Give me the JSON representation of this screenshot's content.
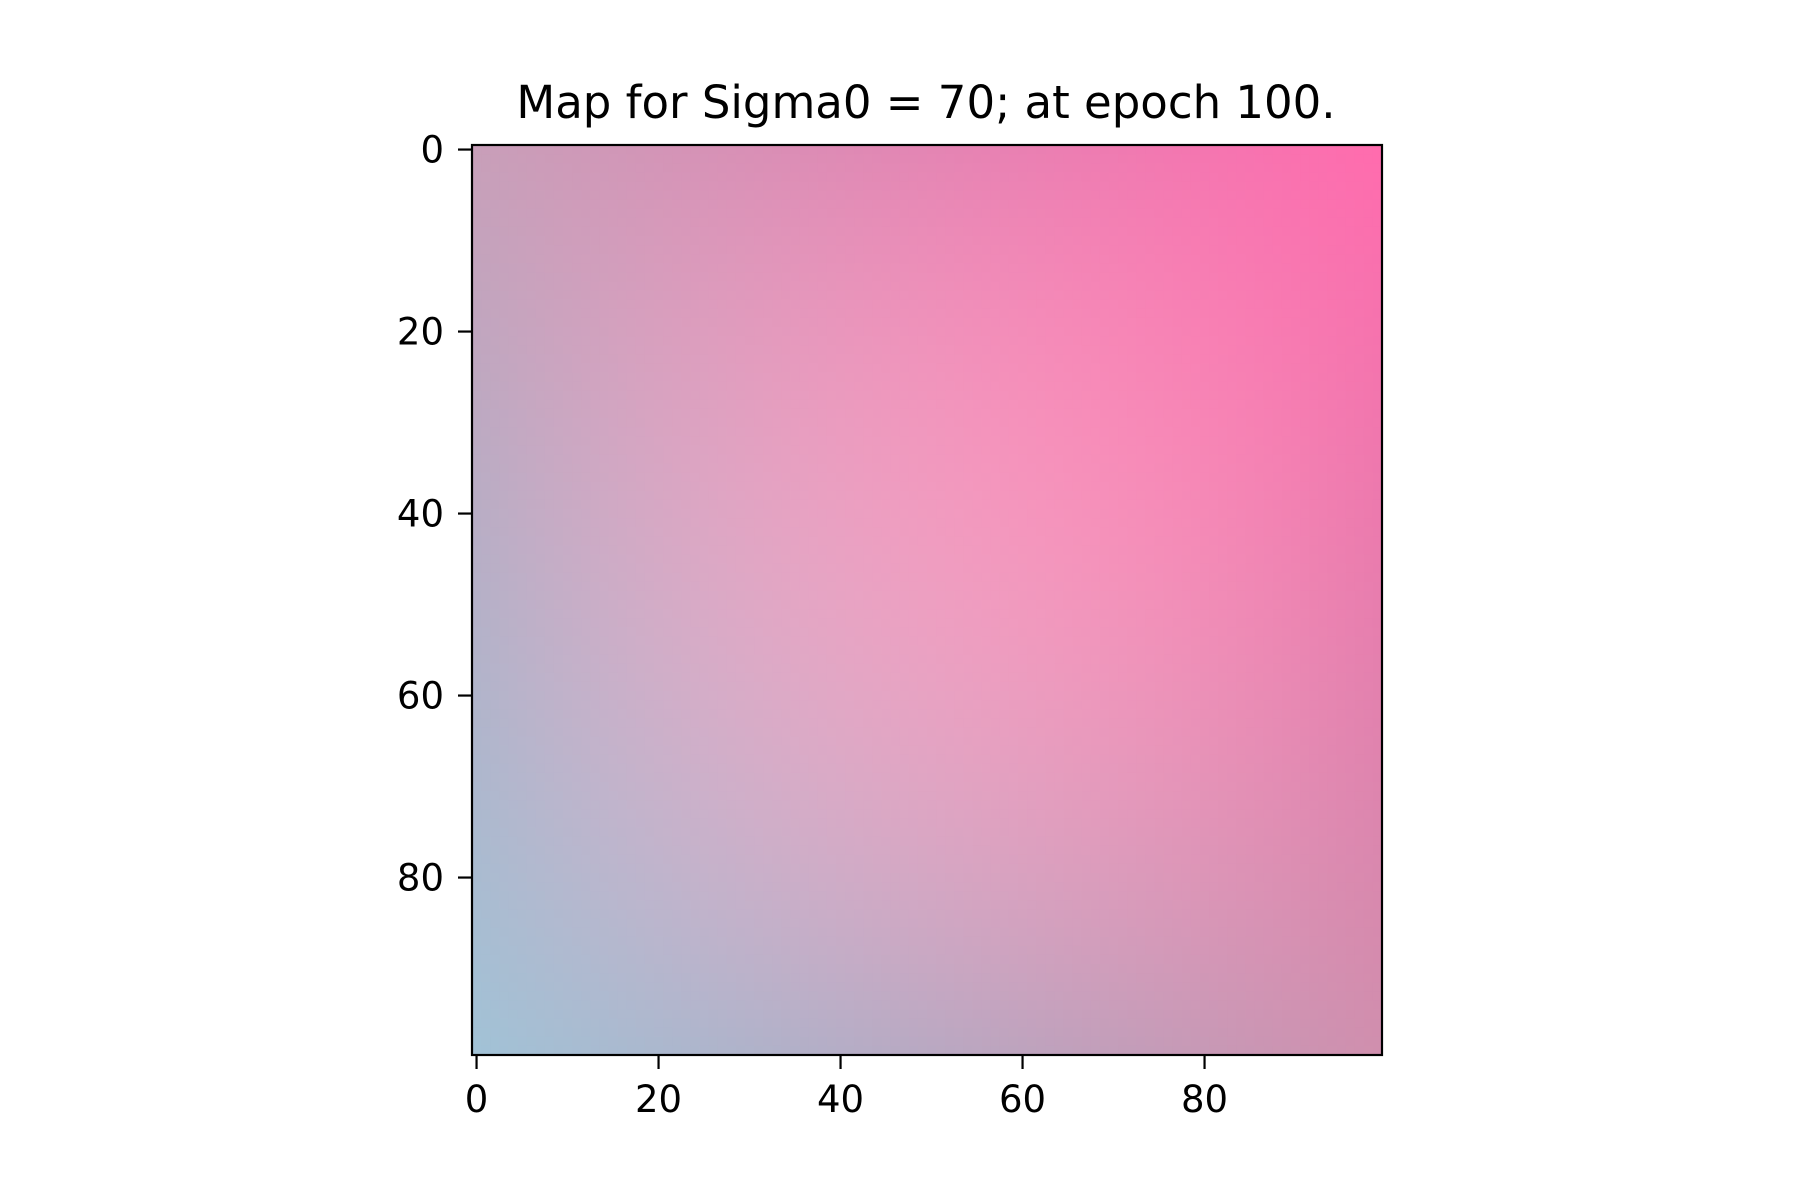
{
  "chart_data": {
    "type": "heatmap",
    "title": "Map for Sigma0 = 70; at epoch 100.",
    "xlabel": "",
    "ylabel": "",
    "grid": false,
    "x_extent": [
      -0.5,
      99.5
    ],
    "y_extent": [
      -0.5,
      99.5
    ],
    "y_direction": "top-to-bottom",
    "x_ticks": [
      0,
      20,
      40,
      60,
      80
    ],
    "y_ticks": [
      0,
      20,
      40,
      60,
      80
    ],
    "x_tick_labels": [
      "0",
      "20",
      "40",
      "60",
      "80"
    ],
    "y_tick_labels": [
      "0",
      "20",
      "40",
      "60",
      "80"
    ],
    "corner_colors": {
      "top_left": "#c89fb9",
      "top_right": "#ff6cae",
      "bottom_left": "#a2c2d6",
      "bottom_right": "#d08fae"
    },
    "center_color": "#ed9fc1"
  }
}
